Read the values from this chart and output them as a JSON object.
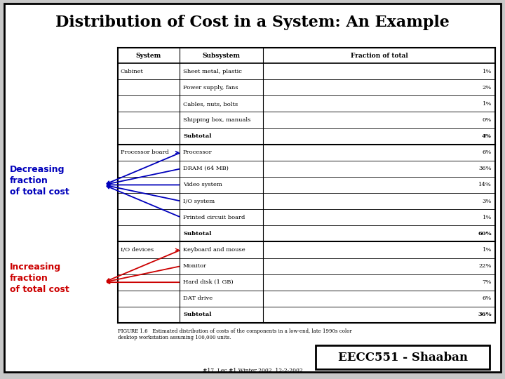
{
  "title": "Distribution of Cost in a System: An Example",
  "title_fontsize": 16,
  "background_color": "#ffffff",
  "table_header": [
    "System",
    "Subsystem",
    "Fraction of total"
  ],
  "table_rows": [
    [
      "Cabinet",
      "Sheet metal, plastic",
      "1%"
    ],
    [
      "",
      "Power supply, fans",
      "2%"
    ],
    [
      "",
      "Cables, nuts, bolts",
      "1%"
    ],
    [
      "",
      "Shipping box, manuals",
      "0%"
    ],
    [
      "",
      "Subtotal",
      "4%"
    ],
    [
      "Processor board",
      "Processor",
      "6%"
    ],
    [
      "",
      "DRAM (64 MB)",
      "36%"
    ],
    [
      "",
      "Video system",
      "14%"
    ],
    [
      "",
      "I/O system",
      "3%"
    ],
    [
      "",
      "Printed circuit board",
      "1%"
    ],
    [
      "",
      "Subtotal",
      "60%"
    ],
    [
      "I/O devices",
      "Keyboard and mouse",
      "1%"
    ],
    [
      "",
      "Monitor",
      "22%"
    ],
    [
      "",
      "Hard disk (1 GB)",
      "7%"
    ],
    [
      "",
      "DAT drive",
      "6%"
    ],
    [
      "",
      "Subtotal",
      "36%"
    ]
  ],
  "subtotal_rows": [
    4,
    10,
    15
  ],
  "section_dividers": [
    5,
    11
  ],
  "figure_caption": "FIGURE 1.6   Estimated distribution of costs of the components in a low-end, late 1990s color\ndesktop workstation assuming 100,000 units.",
  "footer_text": "EECC551 - Shaaban",
  "footer_sub": "#17  Lec #1 Winter 2002  12-2-2002",
  "label_decreasing": "Decreasing\nfraction\nof total cost",
  "label_increasing": "Increasing\nfraction\nof total cost",
  "arrow_color_blue": "#0000bb",
  "arrow_color_red": "#cc0000"
}
